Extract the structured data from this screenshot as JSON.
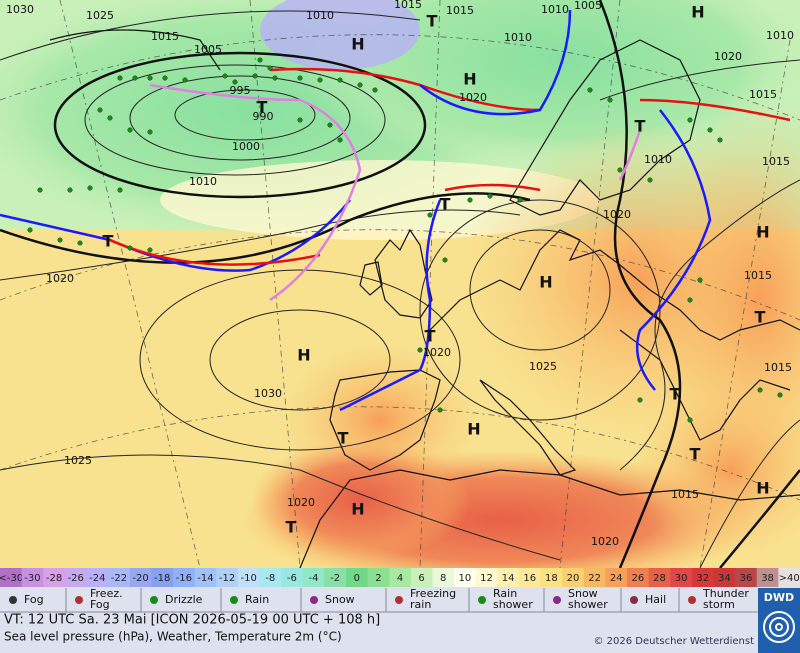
{
  "map": {
    "pressure_labels": [
      "1030",
      "1025",
      "1015",
      "1010",
      "1015",
      "1015",
      "1010",
      "1010",
      "1005",
      "1005",
      "995",
      "990",
      "1000",
      "1010",
      "1020",
      "1020",
      "1015",
      "1010",
      "1010",
      "1015",
      "1020",
      "1015",
      "1020",
      "1030",
      "1025",
      "1025",
      "1020",
      "1020",
      "1015",
      "1020",
      "1015"
    ],
    "centers": [
      "H",
      "T",
      "H",
      "T",
      "H",
      "T",
      "T",
      "T",
      "H",
      "H",
      "T",
      "H",
      "T",
      "T",
      "H",
      "H",
      "T",
      "H",
      "T",
      "T"
    ]
  },
  "scale": {
    "labels": [
      "<-30",
      "-30",
      "-28",
      "-26",
      "-24",
      "-22",
      "-20",
      "-18",
      "-16",
      "-14",
      "-12",
      "-10",
      "-8",
      "-6",
      "-4",
      "-2",
      "0",
      "2",
      "4",
      "6",
      "8",
      "10",
      "12",
      "14",
      "16",
      "18",
      "20",
      "22",
      "24",
      "26",
      "28",
      "30",
      "32",
      "34",
      "36",
      "38",
      ">40"
    ],
    "colors": [
      "#b070c8",
      "#c890e0",
      "#d8a0e8",
      "#c8a8f0",
      "#b8b0f8",
      "#a8b8f8",
      "#98a8f0",
      "#88a0f0",
      "#90b0f8",
      "#a0c0f8",
      "#b0d0f8",
      "#c0e0f8",
      "#a8e8f0",
      "#98e8e0",
      "#90e8c8",
      "#88e0a8",
      "#70d888",
      "#88e090",
      "#a8e8a0",
      "#c8f0b8",
      "#e8f8d8",
      "#fffff0",
      "#fff8d0",
      "#fff0b0",
      "#fde898",
      "#fde080",
      "#f8d070",
      "#f8b860",
      "#f8a058",
      "#f08050",
      "#e86048",
      "#e04848",
      "#d83838",
      "#c83838",
      "#b84848",
      "#c09090",
      "#e8e0e0"
    ]
  },
  "legend": [
    [
      "Fog"
    ],
    [
      "Freez.",
      "Fog"
    ],
    [
      "Drizzle"
    ],
    [
      "Rain"
    ],
    [
      "Snow"
    ],
    [
      "Freezing",
      "rain"
    ],
    [
      "Rain",
      "shower"
    ],
    [
      "Snow",
      "shower"
    ],
    [
      "Hail"
    ],
    [
      "Thunder",
      "storm"
    ]
  ],
  "logo": "DWD",
  "valid_time": "VT: 12 UTC Sa.  23 Mai [ICON 2026-05-19  00 UTC + 108 h]",
  "description": "Sea level pressure (hPa), Weather, Temperature 2m (°C)",
  "copyright": "© 2026 Deutscher Wetterdienst"
}
